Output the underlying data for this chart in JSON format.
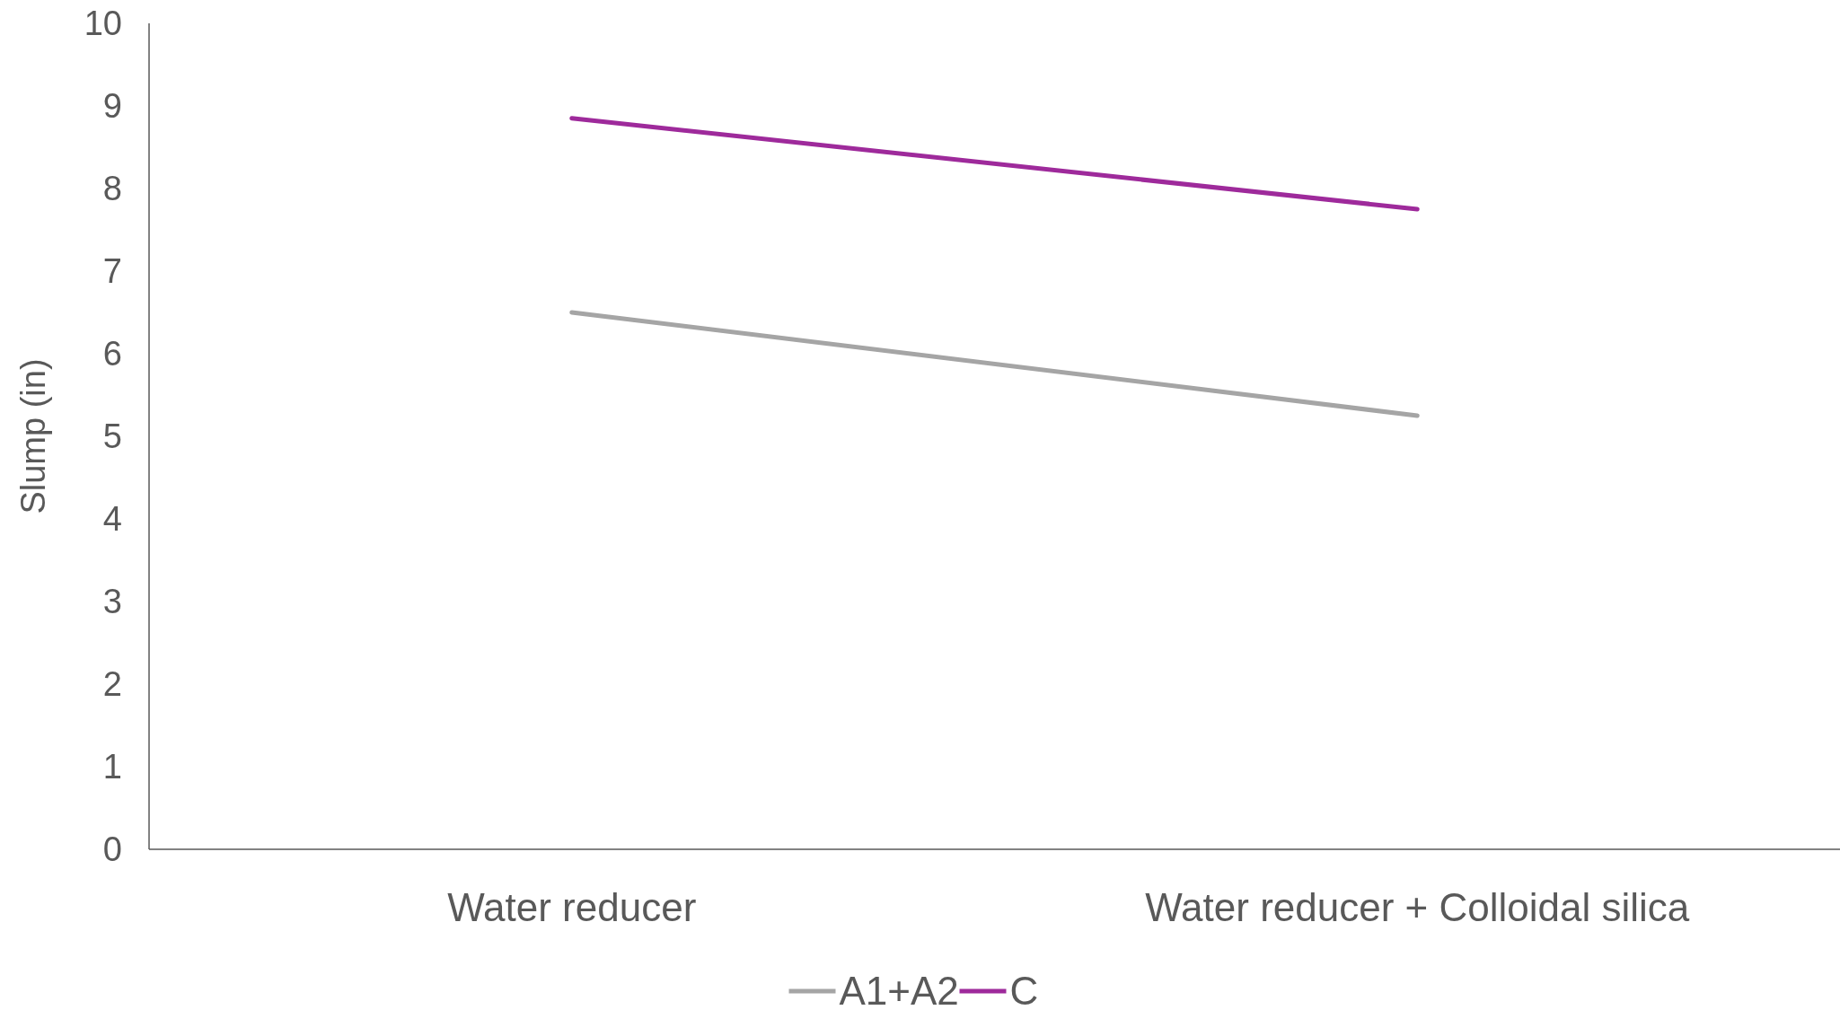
{
  "chart_data": {
    "type": "line",
    "ylabel": "Slump (in)",
    "categories": [
      "Water reducer",
      "Water reducer + Colloidal silica"
    ],
    "series": [
      {
        "name": "A1+A2",
        "color": "#a5a5a5",
        "values": [
          6.5,
          5.25
        ]
      },
      {
        "name": "C",
        "color": "#9e2a9b",
        "values": [
          8.85,
          7.75
        ]
      }
    ],
    "ylim": [
      0,
      10
    ],
    "yticks": [
      0,
      1,
      2,
      3,
      4,
      5,
      6,
      7,
      8,
      9,
      10
    ],
    "grid": false,
    "legend": "bottom",
    "marker": "none",
    "line_style": "solid"
  }
}
